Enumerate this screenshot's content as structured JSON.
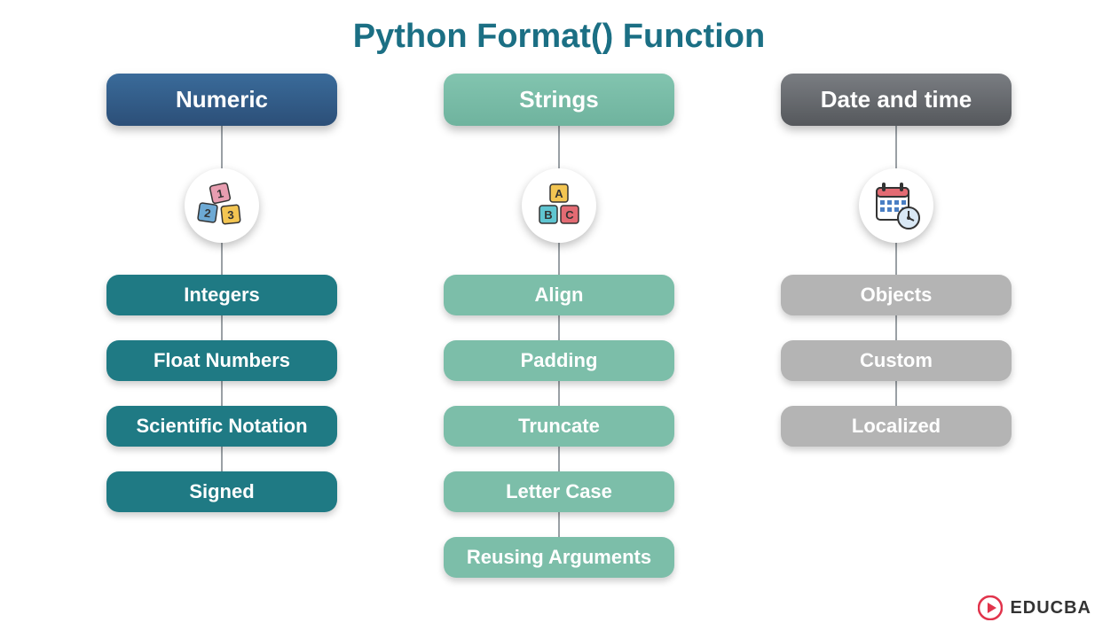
{
  "title": "Python Format() Function",
  "title_color": "#1b6f84",
  "background_color": "#ffffff",
  "connector_color": "#9aa0a5",
  "columns": [
    {
      "header": "Numeric",
      "header_gradient_from": "#3a6b9a",
      "header_gradient_to": "#2c4f78",
      "item_color": "#1f7a84",
      "icon": "number-blocks",
      "connector_height": 410,
      "items": [
        "Integers",
        "Float Numbers",
        "Scientific Notation",
        "Signed"
      ]
    },
    {
      "header": "Strings",
      "header_gradient_from": "#82c4af",
      "header_gradient_to": "#6fb39e",
      "item_color": "#7cbea9",
      "icon": "letter-blocks",
      "connector_height": 490,
      "items": [
        "Align",
        "Padding",
        "Truncate",
        "Letter Case",
        "Reusing Arguments"
      ]
    },
    {
      "header": "Date and time",
      "header_gradient_from": "#7a7d82",
      "header_gradient_to": "#55585c",
      "item_color": "#b4b4b4",
      "icon": "calendar-clock",
      "connector_height": 340,
      "items": [
        "Objects",
        "Custom",
        "Localized"
      ]
    }
  ],
  "watermark": {
    "text": "EDUCBA",
    "logo_color": "#e1344c",
    "text_color": "#333333"
  }
}
